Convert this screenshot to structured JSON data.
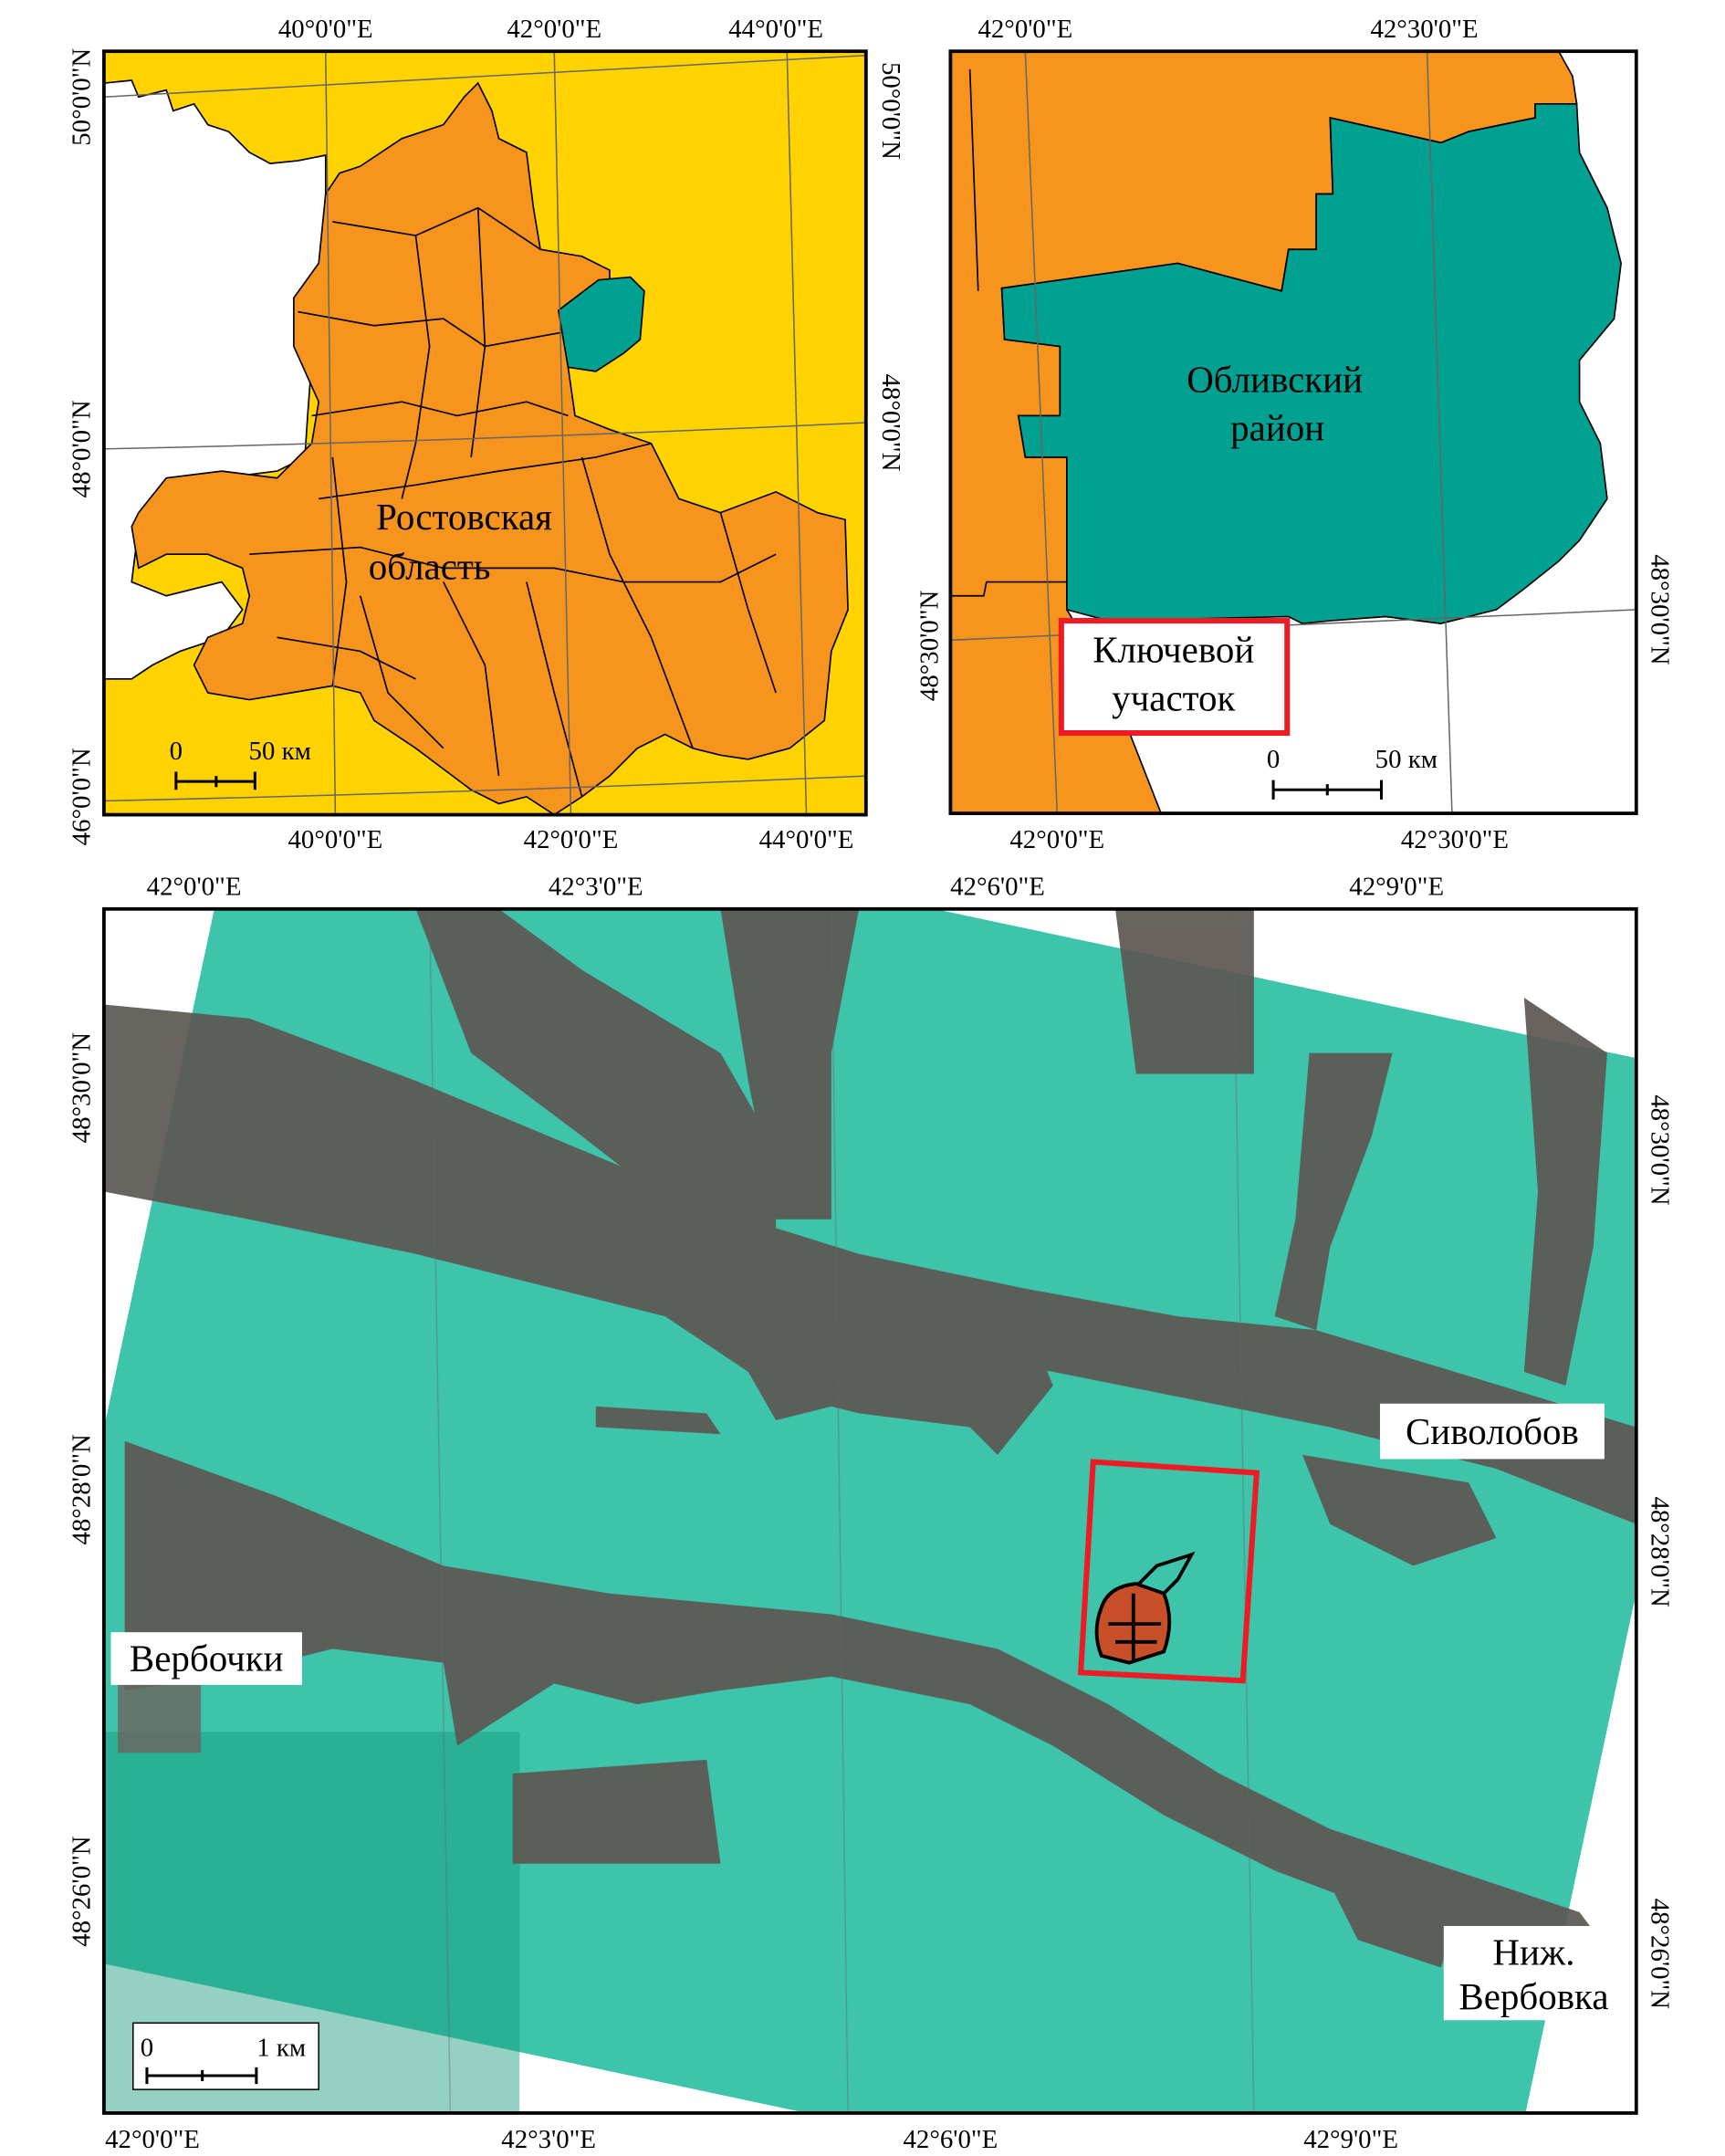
{
  "inset_region": {
    "label_line1": "Ростовская",
    "label_line2": "область",
    "top_ticks": [
      "40°0'0\"E",
      "42°0'0\"E",
      "44°0'0\"E"
    ],
    "bottom_ticks": [
      "40°0'0\"E",
      "42°0'0\"E",
      "44°0'0\"E"
    ],
    "left_ticks": [
      "50°0'0\"N",
      "48°0'0\"N",
      "46°0'0\"N"
    ],
    "right_ticks": [
      "50°0'0\"N",
      "48°0'0\"N"
    ],
    "scale": {
      "zero": "0",
      "length": "50 км"
    },
    "colors": {
      "region": "#F7941D",
      "neighbors": "#FFD200",
      "district": "#00A191",
      "water": "#FFFFFF"
    }
  },
  "inset_district": {
    "label_line1": "Обливский",
    "label_line2": "район",
    "key_area_line1": "Ключевой",
    "key_area_line2": "участок",
    "top_ticks": [
      "42°0'0\"E",
      "42°30'0\"E"
    ],
    "bottom_ticks": [
      "42°0'0\"E",
      "42°30'0\"E"
    ],
    "left_ticks": [
      "48°30'0\"N"
    ],
    "right_ticks": [
      "48°30'0\"N"
    ],
    "scale": {
      "zero": "0",
      "length": "50 км"
    },
    "colors": {
      "highlight": "#ED1C24"
    }
  },
  "main_map": {
    "top_ticks": [
      "42°0'0\"E",
      "42°3'0\"E",
      "42°6'0\"E",
      "42°9'0\"E"
    ],
    "bottom_ticks": [
      "42°0'0\"E",
      "42°3'0\"E",
      "42°6'0\"E",
      "42°9'0\"E"
    ],
    "left_ticks": [
      "48°30'0\"N",
      "48°28'0\"N",
      "48°26'0\"N"
    ],
    "right_ticks": [
      "48°30'0\"N",
      "48°28'0\"N",
      "48°26'0\"N"
    ],
    "places": {
      "sivolobov": "Сиволобов",
      "verbochki": "Вербочки",
      "nizh_line1": "Ниж.",
      "nizh_line2": "Вербовка"
    },
    "scale": {
      "zero": "0",
      "length": "1 км"
    },
    "colors": {
      "low": "#1E9E6A",
      "mid": "#F2E600",
      "high": "#E8401C",
      "valley": "#5A5550",
      "study_box": "#ED1C24"
    }
  }
}
